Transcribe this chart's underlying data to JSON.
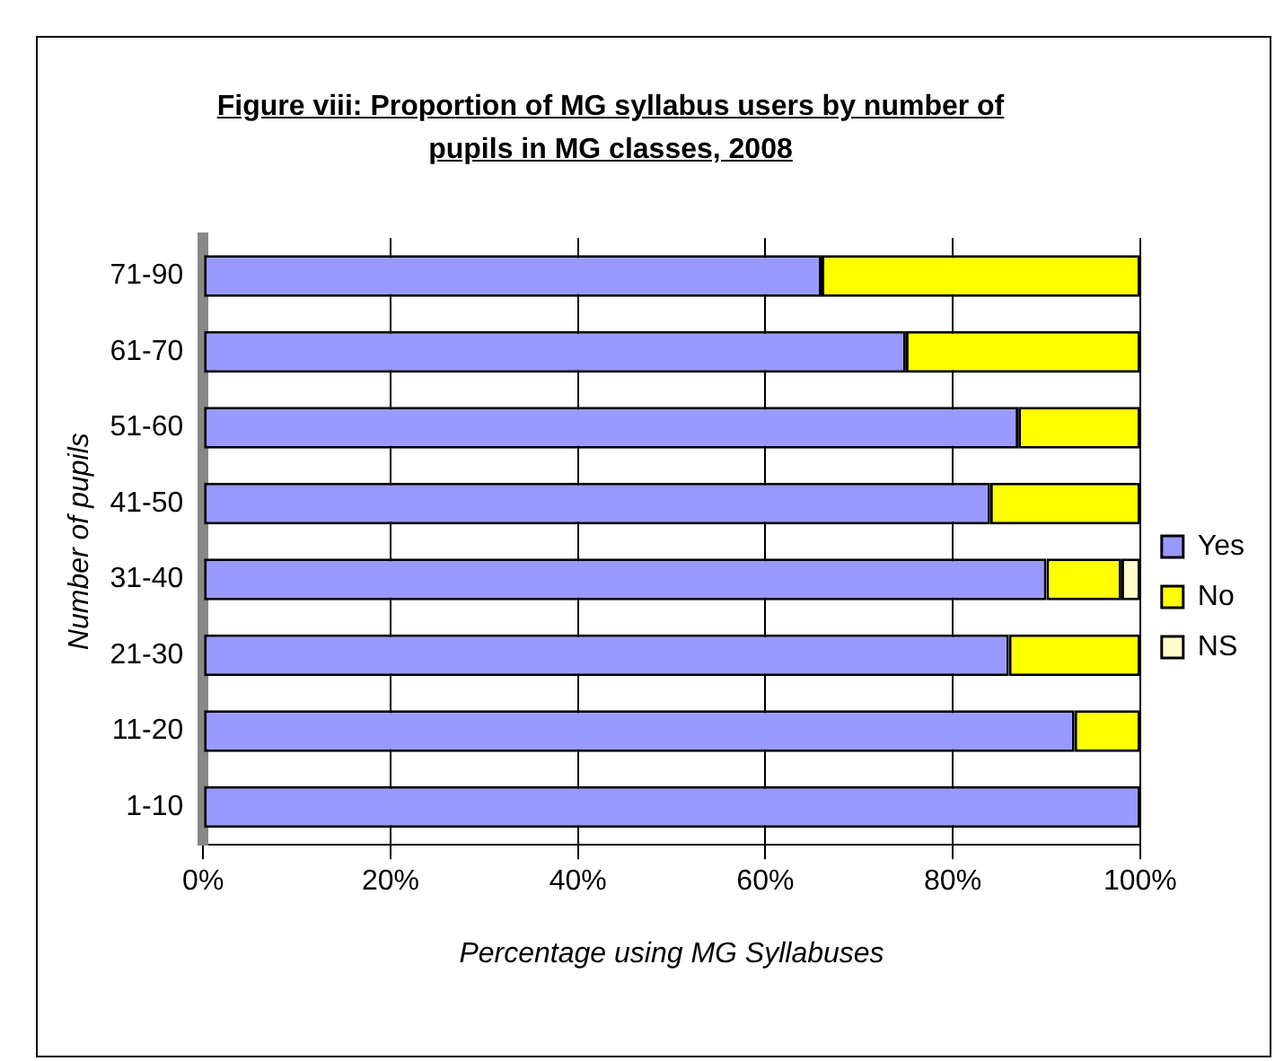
{
  "chart_data": {
    "type": "bar",
    "orientation": "horizontal",
    "stacked": true,
    "title": "Figure viii: Proportion of MG syllabus users by number of pupils in MG classes, 2008",
    "xlabel": "Percentage using MG Syllabuses",
    "ylabel": "Number of pupils",
    "categories": [
      "71-90",
      "61-70",
      "51-60",
      "41-50",
      "31-40",
      "21-30",
      "11-20",
      "1-10"
    ],
    "series": [
      {
        "name": "Yes",
        "color": "#9999ff",
        "values": [
          66,
          75,
          87,
          84,
          90,
          86,
          93,
          100
        ]
      },
      {
        "name": "No",
        "color": "#ffff00",
        "values": [
          34,
          25,
          13,
          16,
          8,
          14,
          7,
          0
        ]
      },
      {
        "name": "NS",
        "color": "#ffffcc",
        "values": [
          0,
          0,
          0,
          0,
          2,
          0,
          0,
          0
        ]
      }
    ],
    "xlim": [
      0,
      100
    ],
    "xticks": [
      {
        "value": 0,
        "label": "0%"
      },
      {
        "value": 20,
        "label": "20%"
      },
      {
        "value": 40,
        "label": "40%"
      },
      {
        "value": 60,
        "label": "60%"
      },
      {
        "value": 80,
        "label": "80%"
      },
      {
        "value": 100,
        "label": "100%"
      }
    ],
    "grid": "x",
    "legend": "right"
  }
}
